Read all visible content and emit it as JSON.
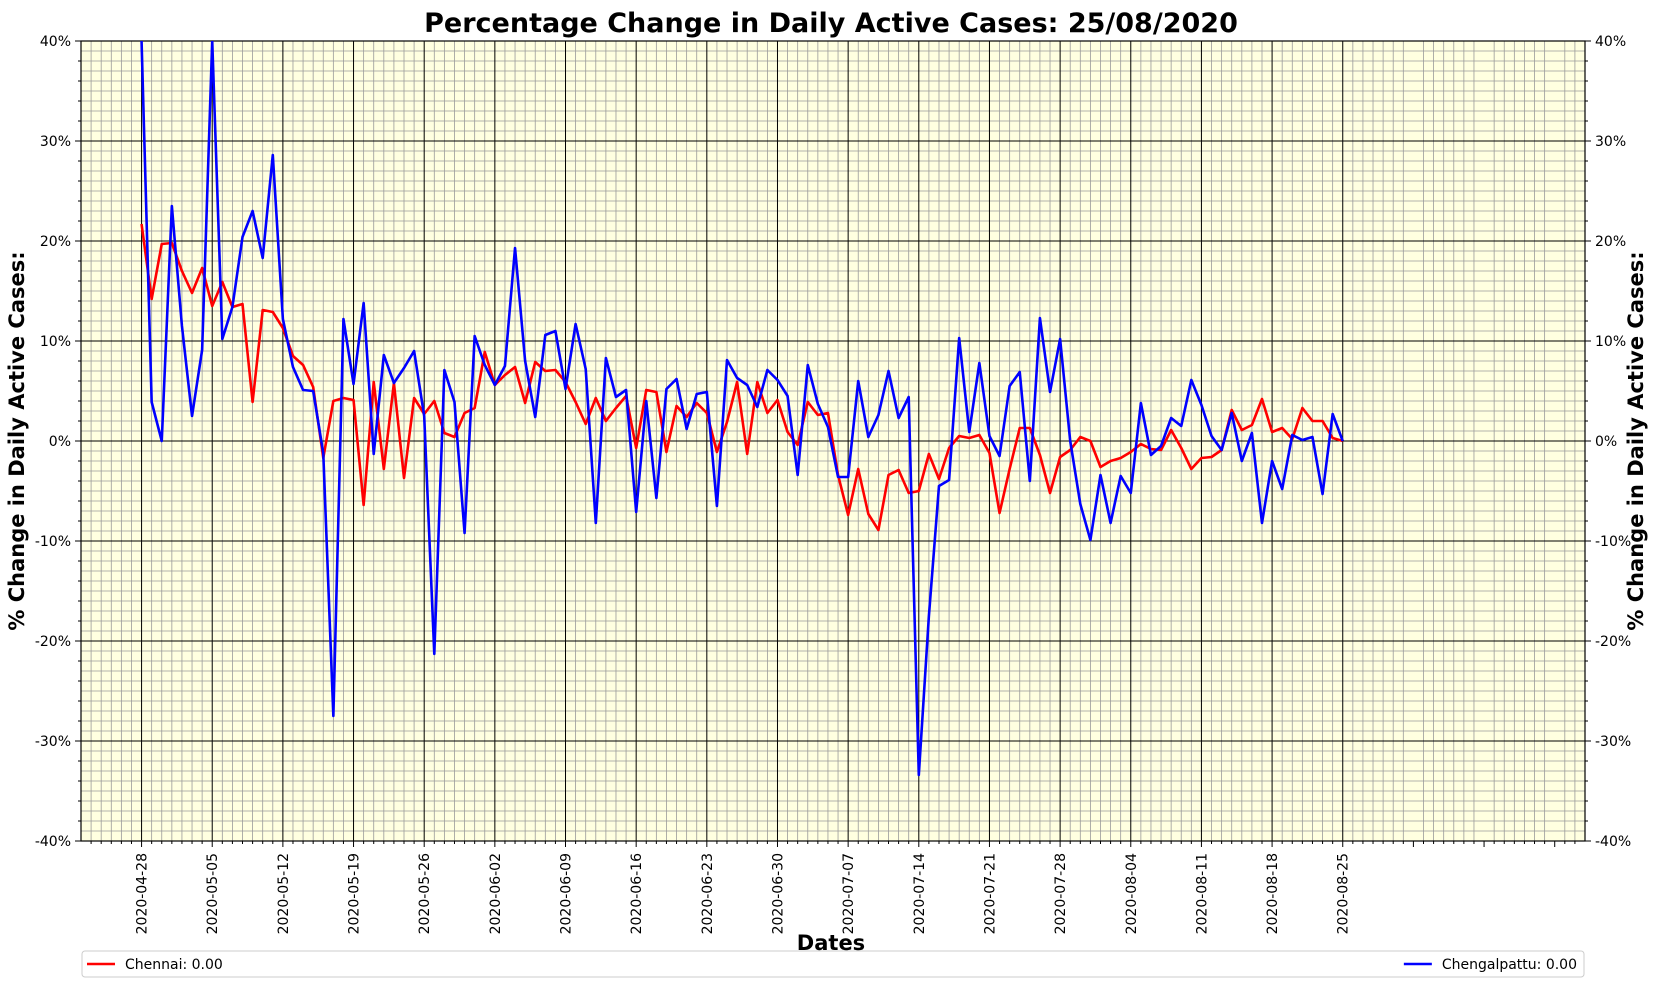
{
  "chart_data": {
    "type": "line",
    "title": "Percentage Change in Daily Active Cases: 25/08/2020",
    "xlabel": "Dates",
    "ylabel_left": "% Change in Daily Active Cases:",
    "ylabel_right": "% Change in Daily Active Cases:",
    "ylim": [
      -40,
      40
    ],
    "y_ticks": [
      -40,
      -30,
      -20,
      -10,
      0,
      10,
      20,
      30,
      40
    ],
    "y_tick_labels": [
      "-40%",
      "-30%",
      "-20%",
      "-10%",
      "0%",
      "10%",
      "20%",
      "30%",
      "40%"
    ],
    "x_start": "2020-04-28",
    "x_tick_labels": [
      "2020-04-28",
      "2020-05-05",
      "2020-05-12",
      "2020-05-19",
      "2020-05-26",
      "2020-06-02",
      "2020-06-09",
      "2020-06-16",
      "2020-06-23",
      "2020-06-30",
      "2020-07-07",
      "2020-07-14",
      "2020-07-21",
      "2020-07-28",
      "2020-08-04",
      "2020-08-11",
      "2020-08-18",
      "2020-08-25"
    ],
    "grid": true,
    "background_color": "#ffffe0",
    "legend_placement": "bottom",
    "series": [
      {
        "name": "Chennai: 0.00",
        "color": "#ff0000",
        "values": [
          21.7,
          14.2,
          19.7,
          19.8,
          17.0,
          14.8,
          17.3,
          13.5,
          15.9,
          13.4,
          13.7,
          3.9,
          13.1,
          12.9,
          11.3,
          8.5,
          7.6,
          5.4,
          -1.7,
          4.0,
          4.3,
          4.1,
          -6.4,
          5.9,
          -2.8,
          5.8,
          -3.7,
          4.3,
          2.7,
          4.0,
          0.8,
          0.4,
          2.8,
          3.3,
          8.9,
          5.6,
          6.6,
          7.4,
          3.8,
          7.9,
          7.0,
          7.1,
          5.9,
          3.9,
          1.7,
          4.3,
          2.0,
          3.3,
          4.5,
          -0.7,
          5.1,
          4.9,
          -1.1,
          3.5,
          2.4,
          3.8,
          2.8,
          -1.1,
          1.9,
          5.9,
          -1.3,
          5.9,
          2.8,
          4.1,
          0.9,
          -0.4,
          3.9,
          2.6,
          2.8,
          -3.4,
          -7.4,
          -2.8,
          -7.3,
          -8.9,
          -3.4,
          -2.9,
          -5.2,
          -5.0,
          -1.3,
          -3.8,
          -0.7,
          0.5,
          0.3,
          0.6,
          -1.2,
          -7.2,
          -2.8,
          1.3,
          1.3,
          -1.4,
          -5.2,
          -1.6,
          -0.9,
          0.4,
          0.0,
          -2.6,
          -2.0,
          -1.7,
          -1.1,
          -0.3,
          -0.8,
          -0.9,
          1.1,
          -0.7,
          -2.8,
          -1.7,
          -1.6,
          -0.9,
          3.1,
          1.1,
          1.6,
          4.2,
          0.9,
          1.3,
          0.2,
          3.3,
          2.0,
          2.0,
          0.3,
          0.0
        ]
      },
      {
        "name": "Chengalpattu: 0.00",
        "color": "#0000ff",
        "values": [
          40,
          3.9,
          0.0,
          23.5,
          11.5,
          2.5,
          9.1,
          40,
          10.2,
          13.4,
          20.4,
          23.0,
          18.3,
          28.6,
          12.2,
          7.4,
          5.1,
          5.0,
          -1.2,
          -27.5,
          12.2,
          5.7,
          13.8,
          -1.3,
          8.6,
          5.8,
          7.3,
          9.0,
          2.5,
          -21.3,
          7.1,
          3.9,
          -9.2,
          10.5,
          7.6,
          5.6,
          7.5,
          19.3,
          8.0,
          2.4,
          10.6,
          11.0,
          5.2,
          11.7,
          7.2,
          -8.2,
          8.3,
          4.4,
          5.1,
          -7.1,
          4.0,
          -5.7,
          5.2,
          6.2,
          1.2,
          4.7,
          4.9,
          -6.5,
          8.1,
          6.3,
          5.6,
          3.4,
          7.1,
          6.1,
          4.5,
          -3.4,
          7.6,
          3.7,
          1.4,
          -3.6,
          -3.6,
          6.0,
          0.4,
          2.6,
          7.0,
          2.3,
          4.4,
          -33.4,
          -17.5,
          -4.5,
          -3.9,
          10.3,
          0.9,
          7.8,
          0.5,
          -1.5,
          5.5,
          6.9,
          -4.0,
          12.3,
          4.9,
          10.2,
          0.0,
          -6.3,
          -9.9,
          -3.4,
          -8.2,
          -3.5,
          -5.2,
          3.8,
          -1.4,
          -0.5,
          2.3,
          1.5,
          6.1,
          3.6,
          0.5,
          -0.9,
          2.8,
          -2.0,
          0.8,
          -8.2,
          -2.0,
          -4.8,
          0.6,
          0.1,
          0.4,
          -5.3,
          2.7,
          0.0
        ]
      }
    ]
  }
}
